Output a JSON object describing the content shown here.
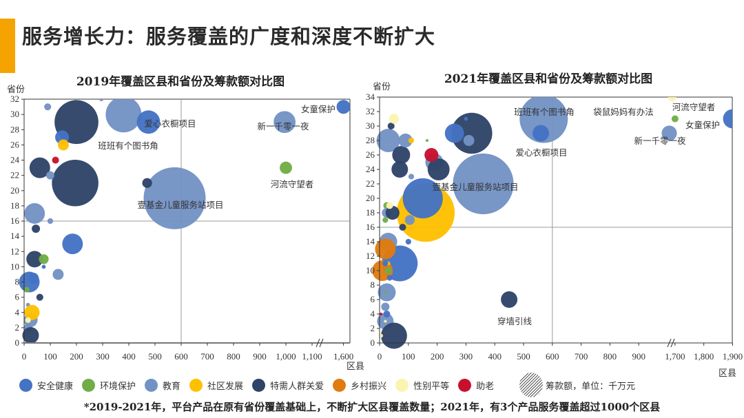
{
  "header": {
    "title": "服务增长力：服务覆盖的广度和深度不断扩大",
    "accent_color": "#f5a300"
  },
  "categories": [
    {
      "name": "安全健康",
      "color": "#4472c4"
    },
    {
      "name": "环境保护",
      "color": "#70ad47"
    },
    {
      "name": "教育",
      "color": "#7292c4"
    },
    {
      "name": "社区发展",
      "color": "#ffc000"
    },
    {
      "name": "特需人群关爱",
      "color": "#2e4468"
    },
    {
      "name": "乡村振兴",
      "color": "#e07b10"
    },
    {
      "name": "性别平等",
      "color": "#fbf4b0"
    },
    {
      "name": "助老",
      "color": "#c8102e"
    }
  ],
  "size_legend": "筹款额，单位：千万元",
  "footnote": "*2019-2021年，平台产品在原有省份覆盖基础上，不断扩大区县覆盖数量；2021年，有3个产品服务覆盖超过1000个区县",
  "chart_data": [
    {
      "type": "bubble",
      "title": "2019年覆盖区县和省份及筹款额对比图",
      "xlabel": "区县",
      "ylabel": "省份",
      "x_ticks": [
        0,
        100,
        200,
        300,
        400,
        500,
        600,
        700,
        800,
        900,
        1000,
        1100,
        1600
      ],
      "x_tick_labels": [
        "0",
        "100",
        "200",
        "300",
        "400",
        "500",
        "600",
        "700",
        "800",
        "900",
        "1,000",
        "1,100",
        "1,600"
      ],
      "x_axis_break": true,
      "y_ticks": [
        0,
        2,
        4,
        6,
        8,
        10,
        12,
        14,
        16,
        18,
        20,
        22,
        24,
        26,
        28,
        30,
        32
      ],
      "ylim": [
        0,
        32
      ],
      "reference_lines": {
        "x": 600,
        "y": 16
      },
      "points": [
        {
          "x": 575,
          "y": 19,
          "size": 48,
          "cat": 2,
          "label": "壹基金儿童服务站项目"
        },
        {
          "x": 195,
          "y": 21,
          "size": 27,
          "cat": 4
        },
        {
          "x": 200,
          "y": 29,
          "size": 24,
          "cat": 4
        },
        {
          "x": 380,
          "y": 30,
          "size": 16,
          "cat": 2,
          "label": "班班有个图书角"
        },
        {
          "x": 475,
          "y": 29,
          "size": 6.8,
          "cat": 0,
          "label": "爱心衣橱项目"
        },
        {
          "x": 995,
          "y": 29,
          "size": 6,
          "cat": 2,
          "label": "新一千零一夜"
        },
        {
          "x": 1600,
          "y": 31,
          "size": 2.4,
          "cat": 0,
          "label": "女童保护"
        },
        {
          "x": 1000,
          "y": 23,
          "size": 1.9,
          "cat": 1,
          "label": "河流守望者"
        },
        {
          "x": 470,
          "y": 21,
          "size": 1.2,
          "cat": 4
        },
        {
          "x": 90,
          "y": 31,
          "size": 0.6,
          "cat": 2
        },
        {
          "x": 145,
          "y": 27,
          "size": 2.4,
          "cat": 0
        },
        {
          "x": 150,
          "y": 26,
          "size": 1.5,
          "cat": 3
        },
        {
          "x": 120,
          "y": 24,
          "size": 0.6,
          "cat": 7
        },
        {
          "x": 60,
          "y": 23,
          "size": 5.3,
          "cat": 4
        },
        {
          "x": 100,
          "y": 22,
          "size": 0.85,
          "cat": 2
        },
        {
          "x": 40,
          "y": 17,
          "size": 5.3,
          "cat": 2
        },
        {
          "x": 100,
          "y": 16,
          "size": 0.4,
          "cat": 2
        },
        {
          "x": 45,
          "y": 15,
          "size": 0.85,
          "cat": 4
        },
        {
          "x": 185,
          "y": 13,
          "size": 5.3,
          "cat": 0
        },
        {
          "x": 40,
          "y": 11,
          "size": 3.4,
          "cat": 4
        },
        {
          "x": 75,
          "y": 11,
          "size": 1.2,
          "cat": 1
        },
        {
          "x": 75,
          "y": 10,
          "size": 0.2,
          "cat": 0
        },
        {
          "x": 130,
          "y": 9,
          "size": 1.5,
          "cat": 2
        },
        {
          "x": 20,
          "y": 8,
          "size": 5.3,
          "cat": 0
        },
        {
          "x": 35,
          "y": 8.5,
          "size": 1.5,
          "cat": 0
        },
        {
          "x": 10,
          "y": 7,
          "size": 0.4,
          "cat": 1
        },
        {
          "x": 60,
          "y": 6,
          "size": 0.6,
          "cat": 4
        },
        {
          "x": 15,
          "y": 5,
          "size": 0.2,
          "cat": 2
        },
        {
          "x": 25,
          "y": 3,
          "size": 2.4,
          "cat": 2
        },
        {
          "x": 30,
          "y": 4,
          "size": 2.9,
          "cat": 3
        },
        {
          "x": 15,
          "y": 3,
          "size": 0.4,
          "cat": 6
        },
        {
          "x": 15,
          "y": 2,
          "size": 0.85,
          "cat": 2
        },
        {
          "x": 25,
          "y": 1,
          "size": 3.4,
          "cat": 4
        },
        {
          "x": 195,
          "y": 32,
          "size": 0.05,
          "cat": 1
        },
        {
          "x": 295,
          "y": 32,
          "size": 0.2,
          "cat": 2
        }
      ]
    },
    {
      "type": "bubble",
      "title": "2021年覆盖区县和省份及筹款额对比图",
      "xlabel": "区县",
      "ylabel": "省份",
      "x_ticks": [
        0,
        100,
        200,
        300,
        400,
        500,
        600,
        700,
        800,
        900,
        1700,
        1800,
        1900
      ],
      "x_tick_labels": [
        "0",
        "100",
        "200",
        "300",
        "400",
        "500",
        "600",
        "700",
        "800",
        "900",
        "1,700",
        "1,800",
        "1,900"
      ],
      "x_axis_break": true,
      "y_ticks": [
        0,
        2,
        4,
        6,
        8,
        10,
        12,
        14,
        16,
        18,
        20,
        22,
        24,
        26,
        28,
        30,
        32,
        34
      ],
      "ylim": [
        0,
        34
      ],
      "reference_lines": {
        "x": 600,
        "y": 16
      },
      "points": [
        {
          "x": 360,
          "y": 22,
          "size": 46,
          "cat": 2,
          "label": "壹基金儿童服务站项目"
        },
        {
          "x": 160,
          "y": 18,
          "size": 42,
          "cat": 3
        },
        {
          "x": 570,
          "y": 31,
          "size": 29,
          "cat": 2,
          "label": "班班有个图书角"
        },
        {
          "x": 320,
          "y": 29,
          "size": 21,
          "cat": 4
        },
        {
          "x": 150,
          "y": 20,
          "size": 20,
          "cat": 0
        },
        {
          "x": 70,
          "y": 11,
          "size": 16,
          "cat": 0
        },
        {
          "x": 560,
          "y": 29,
          "size": 3.4,
          "cat": 0,
          "label": "爱心衣橱项目"
        },
        {
          "x": 260,
          "y": 29,
          "size": 4.6,
          "cat": 0
        },
        {
          "x": 310,
          "y": 28,
          "size": 1.5,
          "cat": 2
        },
        {
          "x": 300,
          "y": 31,
          "size": 0.2,
          "cat": 0
        },
        {
          "x": 450,
          "y": 6,
          "size": 3.4,
          "cat": 4,
          "label": "穿墙引线"
        },
        {
          "x": 190,
          "y": 25,
          "size": 4,
          "cat": 2
        },
        {
          "x": 205,
          "y": 24,
          "size": 6,
          "cat": 4
        },
        {
          "x": 180,
          "y": 26,
          "size": 2.4,
          "cat": 7
        },
        {
          "x": 30,
          "y": 28,
          "size": 6.8,
          "cat": 2
        },
        {
          "x": 75,
          "y": 26,
          "size": 4,
          "cat": 4
        },
        {
          "x": 70,
          "y": 24,
          "size": 3.4,
          "cat": 4
        },
        {
          "x": 90,
          "y": 28,
          "size": 2.4,
          "cat": 2
        },
        {
          "x": 110,
          "y": 28,
          "size": 0.4,
          "cat": 3
        },
        {
          "x": 165,
          "y": 28,
          "size": 0.1,
          "cat": 1
        },
        {
          "x": 40,
          "y": 30,
          "size": 0.6,
          "cat": 4
        },
        {
          "x": 50,
          "y": 31,
          "size": 1.2,
          "cat": 6
        },
        {
          "x": 110,
          "y": 23,
          "size": 0.4,
          "cat": 2
        },
        {
          "x": 25,
          "y": 19,
          "size": 0.6,
          "cat": 1
        },
        {
          "x": 25,
          "y": 18,
          "size": 1.2,
          "cat": 2
        },
        {
          "x": 45,
          "y": 18,
          "size": 2.4,
          "cat": 4
        },
        {
          "x": 35,
          "y": 19,
          "size": 0.6,
          "cat": 6
        },
        {
          "x": 20,
          "y": 17,
          "size": 0.4,
          "cat": 1
        },
        {
          "x": 105,
          "y": 17,
          "size": 1.2,
          "cat": 2
        },
        {
          "x": 80,
          "y": 16,
          "size": 0.6,
          "cat": 4
        },
        {
          "x": 30,
          "y": 14,
          "size": 4,
          "cat": 2
        },
        {
          "x": 20,
          "y": 13,
          "size": 5.3,
          "cat": 5
        },
        {
          "x": 10,
          "y": 10,
          "size": 5.3,
          "cat": 5
        },
        {
          "x": 100,
          "y": 14,
          "size": 0.4,
          "cat": 0
        },
        {
          "x": 30,
          "y": 10,
          "size": 0.6,
          "cat": 1
        },
        {
          "x": 30,
          "y": 11,
          "size": 0.2,
          "cat": 3
        },
        {
          "x": 20,
          "y": 11,
          "size": 0.4,
          "cat": 0
        },
        {
          "x": 35,
          "y": 9,
          "size": 0.4,
          "cat": 0
        },
        {
          "x": 25,
          "y": 7,
          "size": 4,
          "cat": 2
        },
        {
          "x": 20,
          "y": 7,
          "size": 0.1,
          "cat": 1
        },
        {
          "x": 20,
          "y": 5,
          "size": 0.85,
          "cat": 2
        },
        {
          "x": 20,
          "y": 3,
          "size": 3.4,
          "cat": 2
        },
        {
          "x": 25,
          "y": 4,
          "size": 0.6,
          "cat": 0
        },
        {
          "x": 5,
          "y": 4,
          "size": 0.1,
          "cat": 7
        },
        {
          "x": 20,
          "y": 3,
          "size": 0.1,
          "cat": 6
        },
        {
          "x": 50,
          "y": 1,
          "size": 8.5,
          "cat": 4
        },
        {
          "x": 5,
          "y": 1,
          "size": 0.2,
          "cat": 6
        },
        {
          "x": 1690,
          "y": 34,
          "size": 0.85,
          "cat": 6,
          "label": "袋鼠妈妈有办法"
        },
        {
          "x": 1700,
          "y": 31,
          "size": 0.6,
          "cat": 1,
          "label": "河流守望者"
        },
        {
          "x": 1680,
          "y": 29,
          "size": 2.9,
          "cat": 2,
          "label": "新一千零一夜"
        },
        {
          "x": 1900,
          "y": 31,
          "size": 4.6,
          "cat": 0,
          "label": "女童保护"
        }
      ]
    }
  ]
}
